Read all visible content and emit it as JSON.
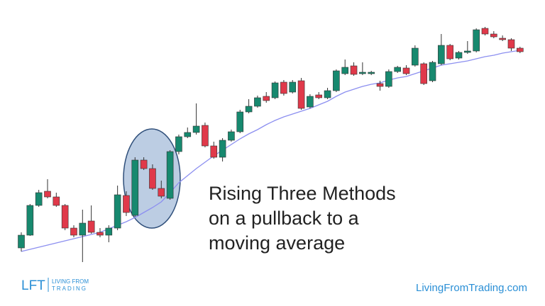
{
  "chart_data": {
    "type": "candlestick",
    "up_color": "#17896f",
    "down_color": "#e0394a",
    "ylim": [
      0,
      400
    ],
    "open": [
      50,
      68,
      110,
      130,
      122,
      110,
      78,
      68,
      88,
      72,
      68,
      78,
      124,
      96,
      174,
      162,
      134,
      120,
      186,
      207,
      213,
      223,
      194,
      178,
      202,
      214,
      242,
      250,
      264,
      262,
      284,
      270,
      286,
      249,
      266,
      262,
      272,
      296,
      307,
      296,
      296,
      282,
      278,
      299,
      304,
      308,
      310,
      286,
      310,
      336,
      318,
      326,
      328,
      360,
      352,
      346,
      344,
      332
    ],
    "high": [
      72,
      112,
      132,
      147,
      128,
      112,
      82,
      104,
      110,
      78,
      82,
      138,
      130,
      178,
      178,
      168,
      145,
      188,
      210,
      220,
      254,
      227,
      200,
      205,
      217,
      245,
      260,
      265,
      270,
      285,
      287,
      287,
      290,
      267,
      270,
      276,
      302,
      316,
      312,
      312,
      300,
      286,
      302,
      307,
      308,
      336,
      312,
      314,
      352,
      338,
      328,
      342,
      360,
      362,
      356,
      350,
      346,
      334
    ],
    "low": [
      45,
      67,
      108,
      120,
      108,
      75,
      65,
      30,
      70,
      65,
      58,
      75,
      95,
      94,
      160,
      132,
      120,
      118,
      182,
      205,
      210,
      192,
      176,
      172,
      200,
      212,
      240,
      248,
      255,
      260,
      265,
      268,
      245,
      247,
      260,
      260,
      270,
      294,
      293,
      294,
      294,
      272,
      276,
      297,
      294,
      306,
      280,
      284,
      308,
      315,
      316,
      324,
      326,
      350,
      346,
      342,
      328,
      325
    ],
    "close": [
      68,
      110,
      128,
      122,
      110,
      78,
      68,
      85,
      72,
      68,
      78,
      125,
      100,
      174,
      162,
      134,
      123,
      186,
      207,
      213,
      222,
      194,
      178,
      202,
      214,
      242,
      250,
      262,
      258,
      283,
      268,
      284,
      247,
      264,
      262,
      272,
      300,
      305,
      295,
      298,
      298,
      278,
      299,
      305,
      296,
      332,
      282,
      312,
      336,
      317,
      326,
      328,
      358,
      352,
      348,
      344,
      332,
      327
    ],
    "moving_average": {
      "color": "#8c8ff0",
      "values": [
        45,
        48,
        51,
        54,
        57,
        60,
        63,
        66,
        69,
        72,
        77,
        82,
        87,
        93,
        100,
        107,
        115,
        128,
        142,
        152,
        162,
        171,
        180,
        188,
        196,
        204,
        211,
        217,
        224,
        230,
        235,
        239,
        243,
        247,
        252,
        257,
        264,
        270,
        274,
        278,
        281,
        283,
        287,
        290,
        292,
        296,
        300,
        304,
        308,
        310,
        312,
        314,
        317,
        320,
        322,
        325,
        327,
        329
      ]
    },
    "annotation": [
      "Rising Three Methods",
      "on a pullback to a",
      "moving average"
    ]
  },
  "brand": {
    "logo": "LFT",
    "tagline": [
      "LIVING FROM",
      "TRADING"
    ],
    "url": "LivingFromTrading.com"
  }
}
